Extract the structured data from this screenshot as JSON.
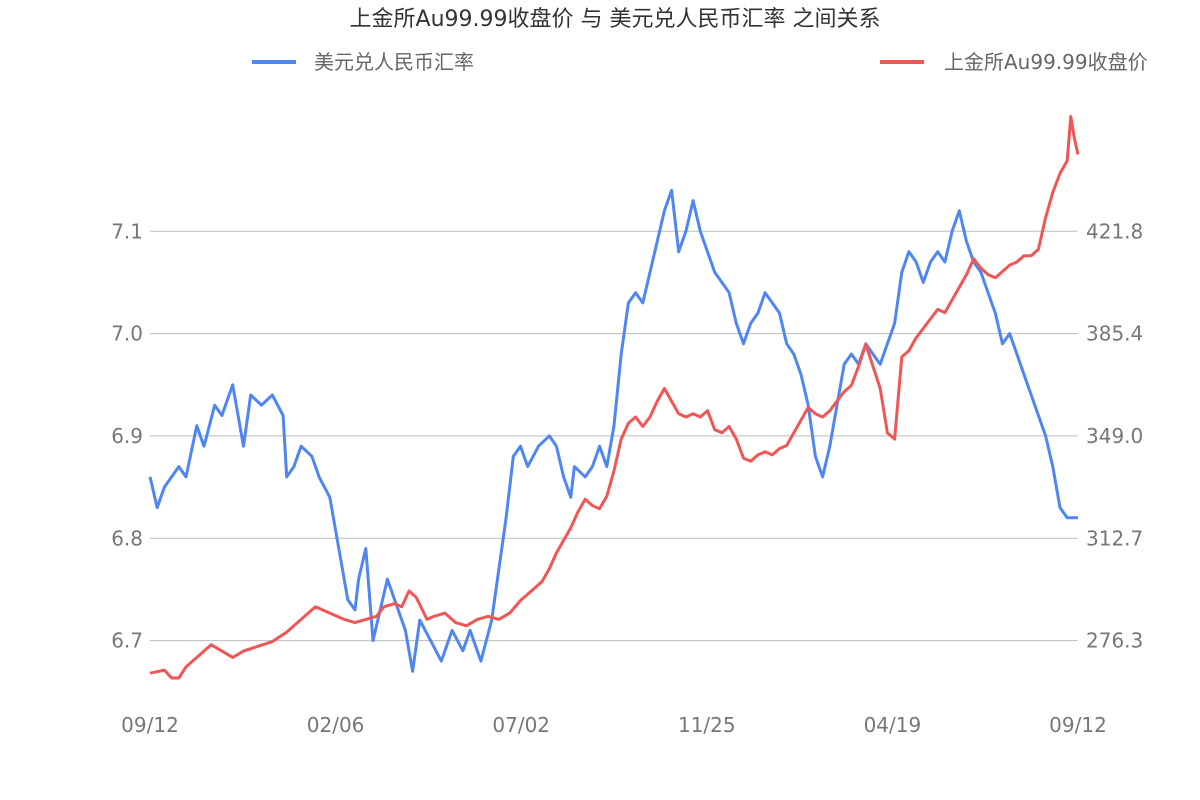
{
  "chart_data": {
    "type": "line",
    "title": "上金所Au99.99收盘价 与 美元兑人民币汇率 之间关系",
    "x_ticks": [
      "09/12",
      "02/06",
      "07/02",
      "11/25",
      "04/19",
      "09/12"
    ],
    "y_left": {
      "ticks": [
        "6.7",
        "6.8",
        "6.9",
        "7.0",
        "7.1"
      ],
      "ylim": [
        6.64,
        7.24
      ]
    },
    "y_right": {
      "ticks": [
        "276.3",
        "312.7",
        "349.0",
        "385.4",
        "421.8"
      ],
      "ylim": [
        256.9,
        451.0
      ]
    },
    "grid": true,
    "legend_position": "top",
    "series": [
      {
        "name": "美元兑人民币汇率",
        "axis": "left",
        "color": "#4f86f0",
        "points": [
          [
            0.0,
            6.86
          ],
          [
            1.0,
            6.83
          ],
          [
            2.0,
            6.85
          ],
          [
            3.0,
            6.86
          ],
          [
            4.0,
            6.87
          ],
          [
            5.0,
            6.86
          ],
          [
            6.5,
            6.91
          ],
          [
            7.5,
            6.89
          ],
          [
            9.0,
            6.93
          ],
          [
            10.0,
            6.92
          ],
          [
            11.5,
            6.95
          ],
          [
            13.0,
            6.89
          ],
          [
            14.0,
            6.94
          ],
          [
            15.5,
            6.93
          ],
          [
            17.0,
            6.94
          ],
          [
            18.5,
            6.92
          ],
          [
            19.0,
            6.86
          ],
          [
            20.0,
            6.87
          ],
          [
            21.0,
            6.89
          ],
          [
            22.5,
            6.88
          ],
          [
            23.5,
            6.86
          ],
          [
            25.0,
            6.84
          ],
          [
            26.5,
            6.78
          ],
          [
            27.5,
            6.74
          ],
          [
            28.5,
            6.73
          ],
          [
            29.0,
            6.76
          ],
          [
            30.0,
            6.79
          ],
          [
            31.0,
            6.7
          ],
          [
            32.0,
            6.73
          ],
          [
            33.0,
            6.76
          ],
          [
            34.0,
            6.74
          ],
          [
            35.5,
            6.71
          ],
          [
            36.5,
            6.67
          ],
          [
            37.5,
            6.72
          ],
          [
            39.0,
            6.7
          ],
          [
            40.5,
            6.68
          ],
          [
            42.0,
            6.71
          ],
          [
            43.5,
            6.69
          ],
          [
            44.5,
            6.71
          ],
          [
            46.0,
            6.68
          ],
          [
            47.5,
            6.72
          ],
          [
            48.5,
            6.77
          ],
          [
            49.5,
            6.82
          ],
          [
            50.5,
            6.88
          ],
          [
            51.5,
            6.89
          ],
          [
            52.5,
            6.87
          ],
          [
            54.0,
            6.89
          ],
          [
            55.5,
            6.9
          ],
          [
            56.5,
            6.89
          ],
          [
            57.5,
            6.86
          ],
          [
            58.5,
            6.84
          ],
          [
            59.0,
            6.87
          ],
          [
            60.5,
            6.86
          ],
          [
            61.5,
            6.87
          ],
          [
            62.5,
            6.89
          ],
          [
            63.5,
            6.87
          ],
          [
            64.5,
            6.91
          ],
          [
            65.5,
            6.98
          ],
          [
            66.5,
            7.03
          ],
          [
            67.5,
            7.04
          ],
          [
            68.5,
            7.03
          ],
          [
            69.5,
            7.06
          ],
          [
            70.5,
            7.09
          ],
          [
            71.5,
            7.12
          ],
          [
            72.5,
            7.14
          ],
          [
            73.5,
            7.08
          ],
          [
            74.5,
            7.1
          ],
          [
            75.5,
            7.13
          ],
          [
            76.5,
            7.1
          ],
          [
            77.5,
            7.08
          ],
          [
            78.5,
            7.06
          ],
          [
            79.5,
            7.05
          ],
          [
            80.5,
            7.04
          ],
          [
            81.5,
            7.01
          ],
          [
            82.5,
            6.99
          ],
          [
            83.5,
            7.01
          ],
          [
            84.5,
            7.02
          ],
          [
            85.5,
            7.04
          ],
          [
            86.5,
            7.03
          ],
          [
            87.5,
            7.02
          ],
          [
            88.5,
            6.99
          ],
          [
            89.5,
            6.98
          ],
          [
            90.5,
            6.96
          ],
          [
            91.5,
            6.93
          ],
          [
            92.5,
            6.88
          ],
          [
            93.5,
            6.86
          ],
          [
            94.5,
            6.89
          ],
          [
            95.5,
            6.93
          ],
          [
            96.5,
            6.97
          ],
          [
            97.5,
            6.98
          ],
          [
            98.5,
            6.97
          ],
          [
            99.5,
            6.99
          ],
          [
            100.5,
            6.98
          ],
          [
            101.5,
            6.97
          ],
          [
            102.5,
            6.99
          ],
          [
            103.5,
            7.01
          ],
          [
            104.5,
            7.06
          ],
          [
            105.5,
            7.08
          ],
          [
            106.5,
            7.07
          ],
          [
            107.5,
            7.05
          ],
          [
            108.5,
            7.07
          ],
          [
            109.5,
            7.08
          ],
          [
            110.5,
            7.07
          ],
          [
            111.5,
            7.1
          ],
          [
            112.5,
            7.12
          ],
          [
            113.5,
            7.09
          ],
          [
            114.5,
            7.07
          ],
          [
            115.5,
            7.06
          ],
          [
            116.5,
            7.04
          ],
          [
            117.5,
            7.02
          ],
          [
            118.5,
            6.99
          ],
          [
            119.5,
            7.0
          ],
          [
            120.5,
            6.98
          ],
          [
            121.5,
            6.96
          ],
          [
            122.5,
            6.94
          ],
          [
            123.5,
            6.92
          ],
          [
            124.5,
            6.9
          ],
          [
            125.5,
            6.87
          ],
          [
            126.5,
            6.83
          ],
          [
            127.5,
            6.82
          ],
          [
            128.5,
            6.82
          ],
          [
            129.0,
            6.82
          ]
        ]
      },
      {
        "name": "上金所Au99.99收盘价",
        "axis": "right",
        "color": "#f05656",
        "points": [
          [
            0.0,
            266.0
          ],
          [
            2.0,
            267.0
          ],
          [
            3.0,
            264.5
          ],
          [
            4.0,
            264.5
          ],
          [
            5.0,
            268.0
          ],
          [
            7.0,
            272.0
          ],
          [
            8.5,
            275.0
          ],
          [
            10.0,
            273.0
          ],
          [
            11.5,
            271.0
          ],
          [
            13.0,
            273.0
          ],
          [
            15.0,
            274.5
          ],
          [
            17.0,
            276.0
          ],
          [
            19.0,
            279.0
          ],
          [
            21.0,
            283.0
          ],
          [
            23.0,
            287.0
          ],
          [
            25.0,
            285.0
          ],
          [
            27.0,
            283.0
          ],
          [
            28.5,
            282.0
          ],
          [
            30.0,
            283.0
          ],
          [
            31.5,
            284.0
          ],
          [
            32.5,
            287.0
          ],
          [
            34.0,
            288.0
          ],
          [
            35.0,
            287.0
          ],
          [
            36.0,
            292.0
          ],
          [
            37.0,
            290.0
          ],
          [
            38.5,
            283.0
          ],
          [
            39.5,
            284.0
          ],
          [
            41.0,
            285.0
          ],
          [
            42.5,
            282.0
          ],
          [
            44.0,
            281.0
          ],
          [
            45.5,
            283.0
          ],
          [
            47.0,
            284.0
          ],
          [
            48.5,
            283.0
          ],
          [
            50.0,
            285.0
          ],
          [
            51.5,
            289.0
          ],
          [
            53.0,
            292.0
          ],
          [
            54.5,
            295.0
          ],
          [
            55.5,
            299.0
          ],
          [
            56.5,
            304.0
          ],
          [
            57.5,
            308.0
          ],
          [
            58.5,
            312.0
          ],
          [
            59.5,
            317.0
          ],
          [
            60.5,
            321.0
          ],
          [
            61.5,
            319.0
          ],
          [
            62.5,
            318.0
          ],
          [
            63.5,
            322.0
          ],
          [
            64.5,
            330.0
          ],
          [
            65.5,
            340.0
          ],
          [
            66.5,
            345.0
          ],
          [
            67.5,
            347.0
          ],
          [
            68.5,
            344.0
          ],
          [
            69.5,
            347.0
          ],
          [
            70.5,
            352.0
          ],
          [
            71.5,
            356.0
          ],
          [
            72.5,
            352.0
          ],
          [
            73.5,
            348.0
          ],
          [
            74.5,
            347.0
          ],
          [
            75.5,
            348.0
          ],
          [
            76.5,
            347.0
          ],
          [
            77.5,
            349.0
          ],
          [
            78.5,
            343.0
          ],
          [
            79.5,
            342.0
          ],
          [
            80.5,
            344.0
          ],
          [
            81.5,
            340.0
          ],
          [
            82.5,
            334.0
          ],
          [
            83.5,
            333.0
          ],
          [
            84.5,
            335.0
          ],
          [
            85.5,
            336.0
          ],
          [
            86.5,
            335.0
          ],
          [
            87.5,
            337.0
          ],
          [
            88.5,
            338.0
          ],
          [
            89.5,
            342.0
          ],
          [
            90.5,
            346.0
          ],
          [
            91.5,
            350.0
          ],
          [
            92.5,
            348.0
          ],
          [
            93.5,
            347.0
          ],
          [
            94.5,
            349.0
          ],
          [
            95.5,
            352.0
          ],
          [
            96.5,
            355.0
          ],
          [
            97.5,
            357.0
          ],
          [
            98.5,
            363.0
          ],
          [
            99.5,
            370.0
          ],
          [
            100.5,
            363.0
          ],
          [
            101.5,
            356.0
          ],
          [
            102.5,
            342.0
          ],
          [
            103.5,
            340.0
          ],
          [
            104.5,
            366.0
          ],
          [
            105.5,
            368.0
          ],
          [
            106.5,
            372.0
          ],
          [
            107.5,
            375.0
          ],
          [
            108.5,
            378.0
          ],
          [
            109.5,
            381.0
          ],
          [
            110.5,
            380.0
          ],
          [
            111.5,
            384.0
          ],
          [
            112.5,
            388.0
          ],
          [
            113.5,
            392.0
          ],
          [
            114.5,
            397.0
          ],
          [
            115.5,
            394.0
          ],
          [
            116.5,
            392.0
          ],
          [
            117.5,
            391.0
          ],
          [
            118.5,
            393.0
          ],
          [
            119.5,
            395.0
          ],
          [
            120.5,
            396.0
          ],
          [
            121.5,
            398.0
          ],
          [
            122.5,
            398.0
          ],
          [
            123.5,
            400.0
          ],
          [
            124.5,
            410.0
          ],
          [
            125.5,
            418.0
          ],
          [
            126.5,
            424.0
          ],
          [
            127.5,
            428.0
          ],
          [
            128.0,
            442.0
          ],
          [
            128.5,
            435.0
          ],
          [
            129.0,
            430.0
          ]
        ]
      }
    ]
  }
}
